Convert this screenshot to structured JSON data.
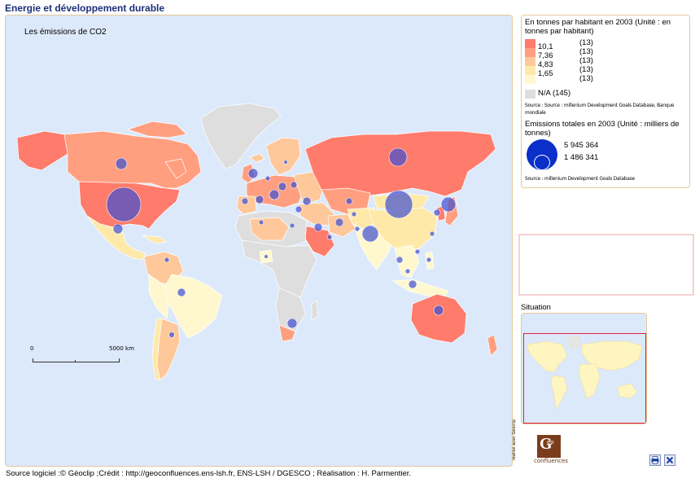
{
  "app": {
    "title": "Energie et développement durable"
  },
  "map": {
    "title": "Les émissions de CO2",
    "scale": {
      "start": "0",
      "end": "5000 km"
    }
  },
  "legend": {
    "choropleth_title": "En tonnes par habitant en 2003 (Unité : en tonnes par habitant)",
    "classes": [
      {
        "value": "10,1",
        "count": "(13)",
        "color": "#ff7b6b"
      },
      {
        "value": "7,36",
        "count": "(13)",
        "color": "#ff9f80"
      },
      {
        "value": "4,83",
        "count": "(13)",
        "color": "#ffc89a"
      },
      {
        "value": "1,65",
        "count": "(13)",
        "color": "#ffe9a8"
      },
      {
        "value": "",
        "count": "(13)",
        "color": "#fff8cf"
      }
    ],
    "na_label": "N/A (145)",
    "na_color": "#dedede",
    "choropleth_source": "Source : Source : millenium Development Goals Database, Banque mondiale",
    "circles_title": "Emissions totales  en 2003 (Unité : milliers de tonnes)",
    "circle_max": "5 945 364",
    "circle_min": "1 486 341",
    "circle_color": "#0b2fc9",
    "circles_source": "Source : millenium Development Goals Database"
  },
  "situation": {
    "label": "Situation"
  },
  "credits": {
    "vertical": "réalisé avec Géoclip",
    "logo_letter": "G",
    "logo_text": "éo",
    "logo_name": "confluences"
  },
  "toolbar": {
    "print_icon": "print-icon",
    "close_icon": "close-icon"
  },
  "footer": {
    "text": "Source logiciel :© Géoclip ;Crédit : http://geoconfluences.ens-lsh.fr, ENS-LSH / DGESCO ; Réalisation : H. Parmentier."
  },
  "colors": {
    "ocean": "#dce9fb",
    "no_data": "#dedede",
    "frame": "#e6c89a",
    "title": "#1c2f7a"
  }
}
